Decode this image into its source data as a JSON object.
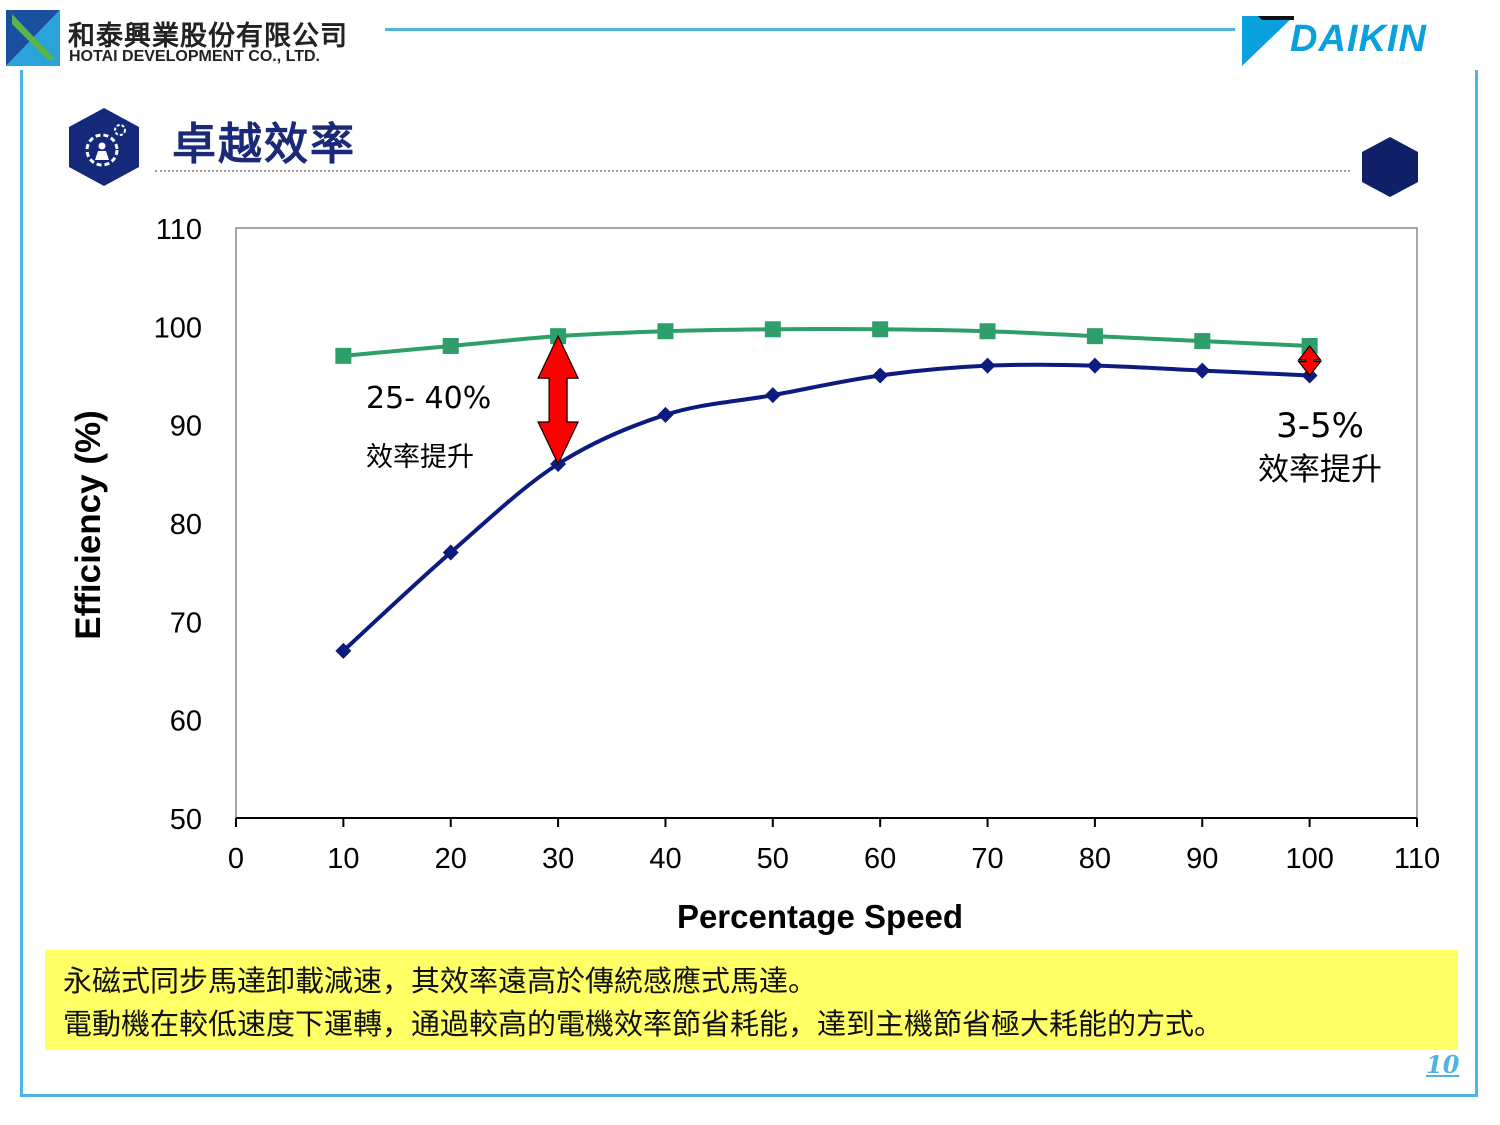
{
  "header": {
    "company_zh": "和泰興業股份有限公司",
    "company_en": "HOTAI DEVELOPMENT CO., LTD.",
    "brand": "DAIKIN",
    "brand_color": "#0aa0de",
    "accent_color": "#4fb3e3"
  },
  "page_title": "卓越效率",
  "title_icon": "gear-person-icon",
  "chart_data": {
    "type": "line",
    "xlabel": "Percentage Speed",
    "ylabel": "Efficiency (%)",
    "xlim": [
      0,
      110
    ],
    "ylim": [
      50,
      110
    ],
    "x_ticks": [
      "0",
      "10",
      "20",
      "30",
      "40",
      "50",
      "60",
      "70",
      "80",
      "90",
      "100",
      "110"
    ],
    "y_ticks": [
      "110",
      "100",
      "90",
      "80",
      "70",
      "60",
      "50"
    ],
    "grid": false,
    "x": [
      10,
      20,
      30,
      40,
      50,
      60,
      70,
      80,
      90,
      100
    ],
    "series": [
      {
        "color": "#2e9e6a",
        "marker": "square",
        "values": [
          97,
          98,
          99,
          99.5,
          99.7,
          99.7,
          99.5,
          99,
          98.5,
          98
        ]
      },
      {
        "color": "#0d1a80",
        "marker": "diamond",
        "values": [
          67,
          77,
          86,
          91,
          93,
          95,
          96,
          96,
          95.5,
          95
        ]
      }
    ],
    "annotations": [
      {
        "line1": "25- 40%",
        "line2": "效率提升",
        "x": 30,
        "y_from": 86,
        "y_to": 99
      },
      {
        "line1": "3-5%",
        "line2": "效率提升",
        "x": 100,
        "y_from": 95,
        "y_to": 98
      }
    ],
    "arrow_color": "#ff0000"
  },
  "notes": {
    "line1": "永磁式同步馬達卸載減速，其效率遠高於傳統感應式馬達。",
    "line2": "電動機在較低速度下運轉，通過較高的電機效率節省耗能，達到主機節省極大耗能的方式。",
    "background": "#ffff66"
  },
  "page_number": "10"
}
